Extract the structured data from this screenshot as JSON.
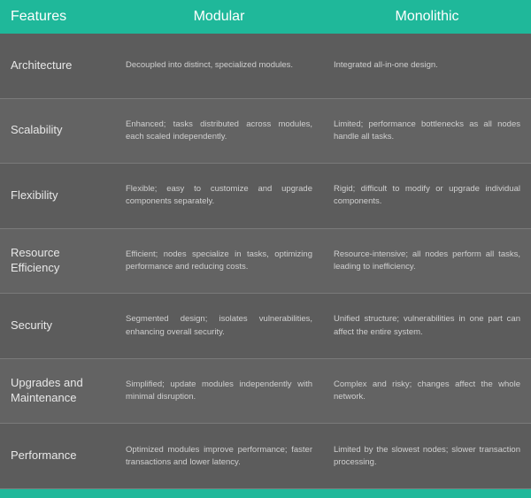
{
  "header": {
    "features": "Features",
    "modular": "Modular",
    "monolithic": "Monolithic"
  },
  "rows": [
    {
      "feature": "Architecture",
      "modular": "Decoupled into distinct, specialized modules.",
      "monolithic": "Integrated all-in-one design."
    },
    {
      "feature": "Scalability",
      "modular": "Enhanced; tasks distributed across modules, each scaled independently.",
      "monolithic": "Limited; performance bottlenecks as all nodes handle all tasks."
    },
    {
      "feature": "Flexibility",
      "modular": "Flexible; easy to customize and upgrade components separately.",
      "monolithic": "Rigid; difficult to modify or upgrade individual components."
    },
    {
      "feature": "Resource Efficiency",
      "modular": "Efficient; nodes specialize in tasks, optimizing performance and reducing costs.",
      "monolithic": "Resource-intensive; all nodes perform all tasks, leading to inefficiency."
    },
    {
      "feature": "Security",
      "modular": "Segmented design; isolates vulnerabilities, enhancing overall security.",
      "monolithic": "Unified structure; vulnerabilities in one part can affect the entire system."
    },
    {
      "feature": "Upgrades and Maintenance",
      "modular": "Simplified; update modules independently with minimal disruption.",
      "monolithic": "Complex and risky; changes affect the whole network."
    },
    {
      "feature": "Performance",
      "modular": "Optimized modules improve performance; faster transactions and lower latency.",
      "monolithic": "Limited by the slowest nodes; slower transaction processing."
    }
  ],
  "colors": {
    "header_bg": "#1fb89a",
    "row_bg": "#5c5c5c",
    "row_alt_bg": "#636363",
    "header_text": "#ffffff",
    "feature_text": "#e8e8e8",
    "cell_text": "#cfcfcf",
    "divider": "#7a7a7a"
  },
  "fontsizes": {
    "header": 16,
    "feature": 13,
    "cell": 9.5
  }
}
